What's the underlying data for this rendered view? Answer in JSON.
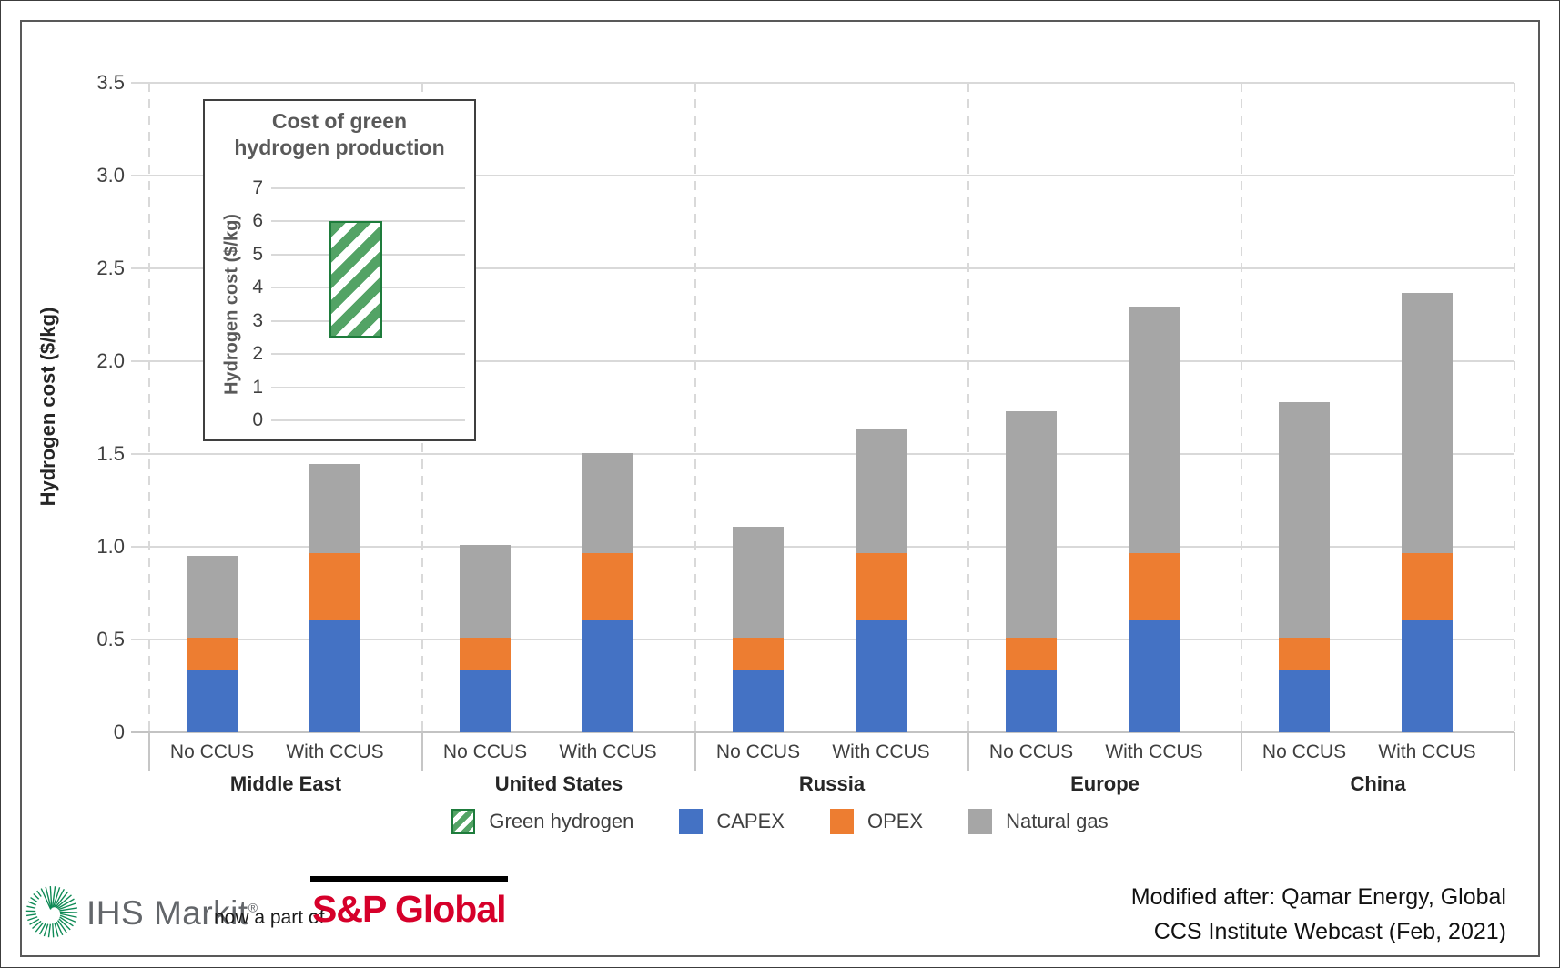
{
  "chart_data": [
    {
      "id": "main-stacked-bar",
      "type": "bar",
      "stacked": true,
      "title": "",
      "xlabel": "",
      "ylabel": "Hydrogen cost ($/kg)",
      "ylim": [
        0,
        3.5
      ],
      "yticks": [
        0,
        0.5,
        1,
        1.5,
        2,
        2.5,
        3,
        3.5
      ],
      "grid": "horizontal solid, dashed vertical group separators",
      "legend_position": "bottom",
      "groups": [
        "Middle East",
        "United States",
        "Russia",
        "Europe",
        "China"
      ],
      "bar_labels": [
        "No CCUS",
        "With CCUS"
      ],
      "series": [
        {
          "name": "CAPEX",
          "key": "capex",
          "color": "#4472C4"
        },
        {
          "name": "OPEX",
          "key": "opex",
          "color": "#ED7D31"
        },
        {
          "name": "Natural gas",
          "key": "natural_gas",
          "color": "#A6A6A6"
        }
      ],
      "bars": [
        {
          "region": "Middle East",
          "label": "No CCUS",
          "capex": 0.34,
          "opex": 0.17,
          "natural_gas": 0.44,
          "total": 0.95
        },
        {
          "region": "Middle East",
          "label": "With CCUS",
          "capex": 0.61,
          "opex": 0.36,
          "natural_gas": 0.48,
          "total": 1.45
        },
        {
          "region": "United States",
          "label": "No CCUS",
          "capex": 0.34,
          "opex": 0.17,
          "natural_gas": 0.5,
          "total": 1.01
        },
        {
          "region": "United States",
          "label": "With CCUS",
          "capex": 0.61,
          "opex": 0.36,
          "natural_gas": 0.54,
          "total": 1.51
        },
        {
          "region": "Russia",
          "label": "No CCUS",
          "capex": 0.34,
          "opex": 0.17,
          "natural_gas": 0.6,
          "total": 1.11
        },
        {
          "region": "Russia",
          "label": "With CCUS",
          "capex": 0.61,
          "opex": 0.36,
          "natural_gas": 0.67,
          "total": 1.64
        },
        {
          "region": "Europe",
          "label": "No CCUS",
          "capex": 0.34,
          "opex": 0.17,
          "natural_gas": 1.22,
          "total": 1.73
        },
        {
          "region": "Europe",
          "label": "With CCUS",
          "capex": 0.61,
          "opex": 0.36,
          "natural_gas": 1.33,
          "total": 2.3
        },
        {
          "region": "China",
          "label": "No CCUS",
          "capex": 0.34,
          "opex": 0.17,
          "natural_gas": 1.27,
          "total": 1.78
        },
        {
          "region": "China",
          "label": "With CCUS",
          "capex": 0.61,
          "opex": 0.36,
          "natural_gas": 1.4,
          "total": 2.37
        }
      ]
    },
    {
      "id": "inset-green-hydrogen",
      "type": "bar",
      "title": "Cost of green hydrogen production",
      "title_lines": [
        "Cost of green",
        "hydrogen production"
      ],
      "ylabel": "Hydrogen cost ($/kg)",
      "ylim": [
        0,
        7
      ],
      "yticks": [
        0,
        1,
        2,
        3,
        4,
        5,
        6,
        7
      ],
      "grid": "horizontal solid",
      "bars": [
        {
          "label": "Green hydrogen",
          "from": 2.5,
          "to": 6.0
        }
      ],
      "bar_style": {
        "stripe_color": "#53A365",
        "border_color": "#1E7C3C",
        "pattern": "diagonal-hatch"
      }
    }
  ],
  "legend": {
    "items": [
      {
        "label": "Green hydrogen",
        "swatch": "green-hydrogen"
      },
      {
        "label": "CAPEX",
        "swatch": "capex",
        "color": "#4472C4"
      },
      {
        "label": "OPEX",
        "swatch": "opex",
        "color": "#ED7D31"
      },
      {
        "label": "Natural gas",
        "swatch": "natural-gas",
        "color": "#A6A6A6"
      }
    ]
  },
  "footer": {
    "brand": "IHS Markit",
    "registered": "®",
    "tagline": "now a part of",
    "partner_brand": "S&P Global",
    "attribution": [
      "Modified after: Qamar Energy, Global",
      "CCS Institute Webcast (Feb, 2021)"
    ],
    "brand_color": "#63666A",
    "partner_color": "#D6002A",
    "logo_green": "#0E8A55"
  }
}
